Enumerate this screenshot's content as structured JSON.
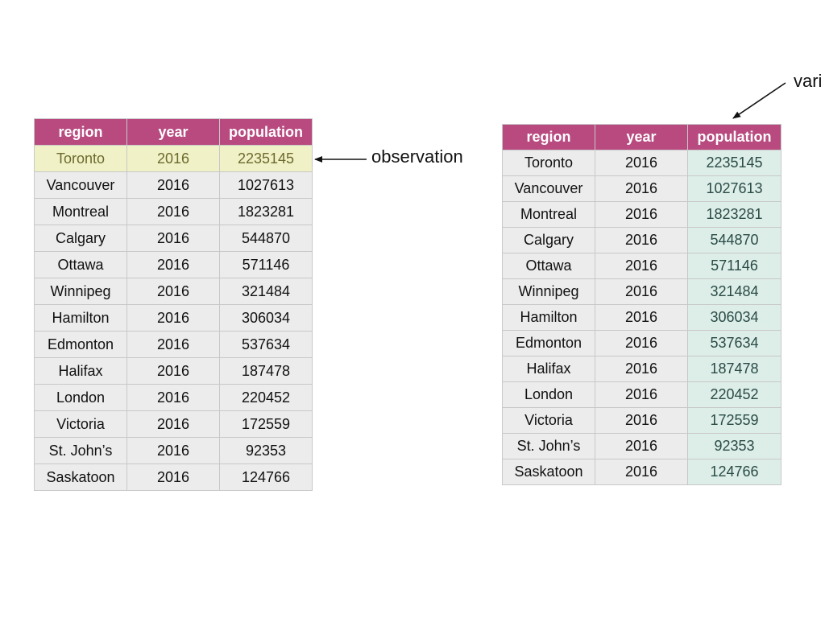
{
  "headers": [
    "region",
    "year",
    "population"
  ],
  "rows": [
    [
      "Toronto",
      "2016",
      "2235145"
    ],
    [
      "Vancouver",
      "2016",
      "1027613"
    ],
    [
      "Montreal",
      "2016",
      "1823281"
    ],
    [
      "Calgary",
      "2016",
      "544870"
    ],
    [
      "Ottawa",
      "2016",
      "571146"
    ],
    [
      "Winnipeg",
      "2016",
      "321484"
    ],
    [
      "Hamilton",
      "2016",
      "306034"
    ],
    [
      "Edmonton",
      "2016",
      "537634"
    ],
    [
      "Halifax",
      "2016",
      "187478"
    ],
    [
      "London",
      "2016",
      "220452"
    ],
    [
      "Victoria",
      "2016",
      "172559"
    ],
    [
      "St. John’s",
      "2016",
      "92353"
    ],
    [
      "Saskatoon",
      "2016",
      "124766"
    ]
  ],
  "labels": {
    "observation": "observation",
    "variable": "vari"
  },
  "colors": {
    "header": "#b84a7f",
    "cell": "#ececec",
    "observation_highlight": "#f0f1c6",
    "variable_highlight": "#ddeee9"
  }
}
